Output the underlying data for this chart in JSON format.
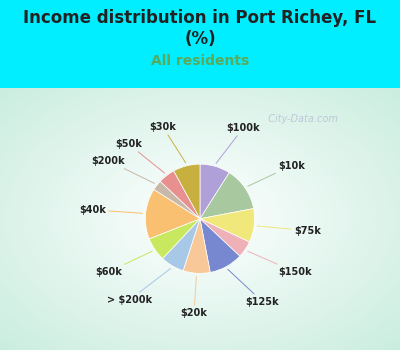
{
  "title": "Income distribution in Port Richey, FL\n(%)",
  "subtitle": "All residents",
  "title_color": "#222222",
  "subtitle_color": "#5aaa5a",
  "background_color": "#00eeff",
  "labels": [
    "$100k",
    "$10k",
    "$75k",
    "$150k",
    "$125k",
    "$20k",
    "> $200k",
    "$60k",
    "$40k",
    "$200k",
    "$50k",
    "$30k"
  ],
  "values": [
    9,
    13,
    10,
    5,
    10,
    8,
    7,
    7,
    15,
    3,
    5,
    8
  ],
  "colors": [
    "#b0a0d8",
    "#a8c8a0",
    "#f0e87a",
    "#f0b0b8",
    "#7888d0",
    "#f8c898",
    "#a8c8e8",
    "#c8e860",
    "#f8c070",
    "#c8b8a8",
    "#e89090",
    "#c8b040"
  ],
  "watermark": "City-Data.com",
  "figsize": [
    4.0,
    3.5
  ],
  "dpi": 100
}
